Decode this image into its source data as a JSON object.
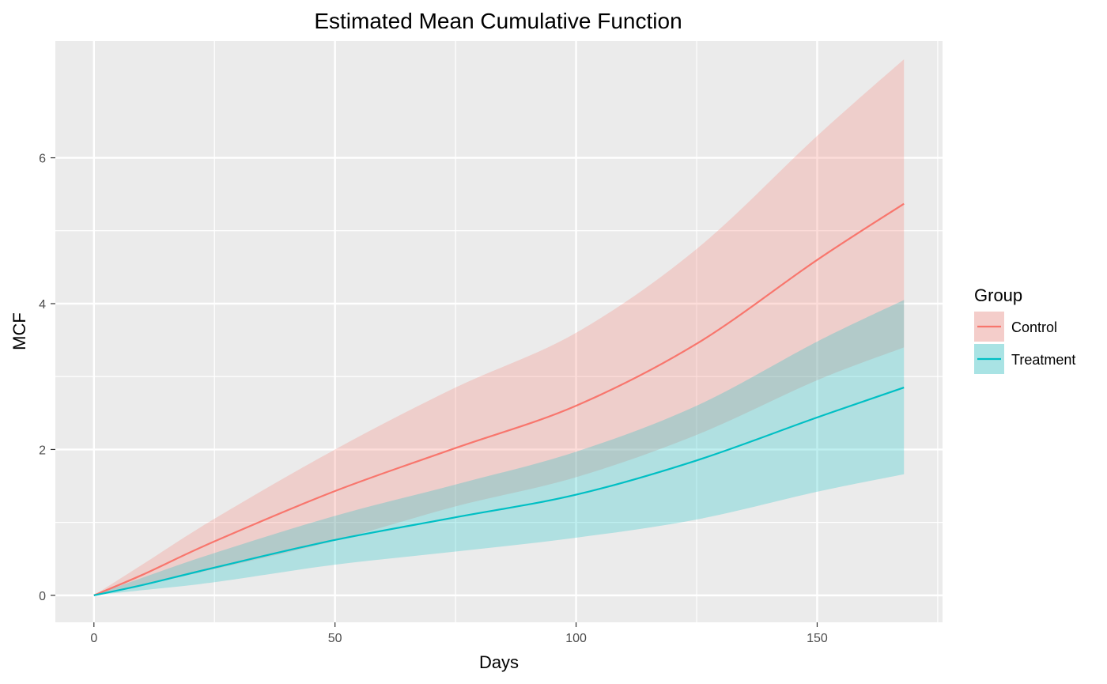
{
  "chart_data": {
    "type": "line",
    "title": "Estimated Mean Cumulative Function",
    "xlabel": "Days",
    "ylabel": "MCF",
    "xlim": [
      -8,
      176
    ],
    "ylim": [
      -0.37,
      7.6
    ],
    "x_ticks": [
      0,
      50,
      100,
      150
    ],
    "x_tick_labels": [
      "0",
      "50",
      "100",
      "150"
    ],
    "y_ticks": [
      0,
      2,
      4,
      6
    ],
    "y_tick_labels": [
      "0",
      "2",
      "4",
      "6"
    ],
    "grid": true,
    "legend": {
      "title": "Group",
      "position": "right"
    },
    "series": [
      {
        "name": "Control",
        "color": "#F8766D",
        "x": [
          0,
          10,
          25,
          50,
          75,
          100,
          125,
          150,
          168
        ],
        "y": [
          0,
          0.28,
          0.74,
          1.43,
          2.02,
          2.6,
          3.45,
          4.6,
          5.37
        ],
        "lower": [
          0,
          0.14,
          0.36,
          0.75,
          1.22,
          1.62,
          2.2,
          2.95,
          3.4
        ],
        "upper": [
          0,
          0.42,
          1.05,
          2.0,
          2.85,
          3.6,
          4.75,
          6.3,
          7.35
        ]
      },
      {
        "name": "Treatment",
        "color": "#00BFC4",
        "x": [
          0,
          10,
          25,
          50,
          75,
          100,
          125,
          150,
          168
        ],
        "y": [
          0,
          0.14,
          0.38,
          0.76,
          1.07,
          1.38,
          1.85,
          2.44,
          2.85
        ],
        "lower": [
          0,
          0.07,
          0.18,
          0.42,
          0.6,
          0.79,
          1.04,
          1.42,
          1.66
        ],
        "upper": [
          0,
          0.24,
          0.58,
          1.09,
          1.52,
          1.97,
          2.6,
          3.48,
          4.05
        ]
      }
    ]
  }
}
